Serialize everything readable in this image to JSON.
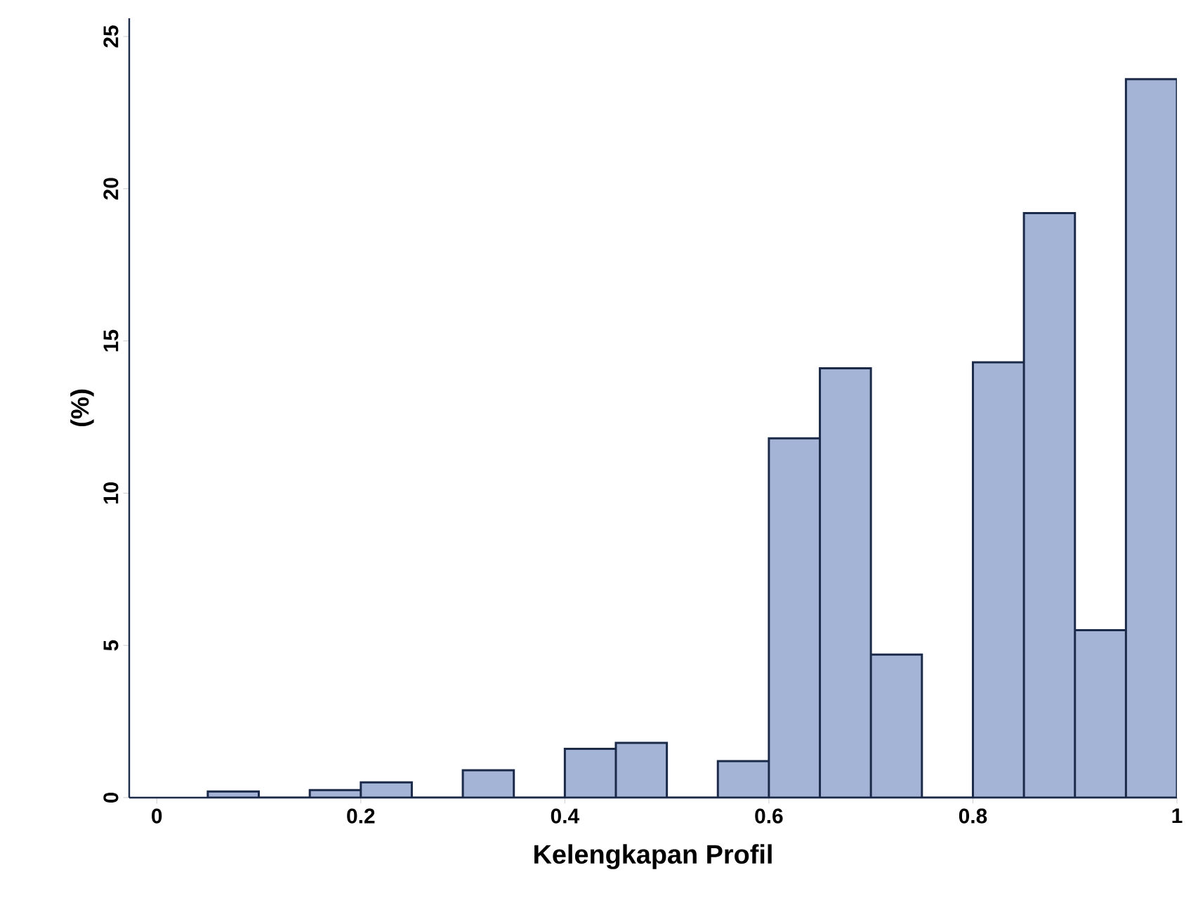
{
  "chart_data": {
    "type": "histogram",
    "xlabel": "Kelengkapan Profil",
    "ylabel": "(%)",
    "bins": [
      0.05,
      0.1,
      0.15,
      0.2,
      0.25,
      0.3,
      0.35,
      0.4,
      0.45,
      0.5,
      0.55,
      0.6,
      0.65,
      0.7,
      0.75,
      0.8,
      0.85,
      0.9,
      0.95,
      1.0
    ],
    "values": [
      0.2,
      0,
      0.25,
      0.5,
      0,
      0.9,
      0,
      1.6,
      1.8,
      0,
      1.2,
      11.8,
      14.1,
      4.7,
      0,
      14.3,
      19.2,
      5.5,
      23.6
    ],
    "color": "#a3b4d6",
    "xlim": [
      -0.027,
      1
    ],
    "ylim": [
      0,
      25.6
    ],
    "xticks": [
      0,
      0.2,
      0.4,
      0.6,
      0.8,
      1
    ],
    "yticks": [
      0,
      5,
      10,
      15,
      20,
      25
    ]
  }
}
